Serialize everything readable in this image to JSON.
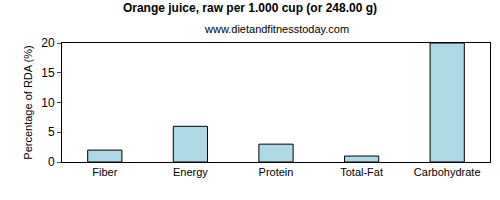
{
  "chart_data": {
    "type": "bar",
    "title": "Orange juice, raw per 1.000 cup (or 248.00 g)",
    "subtitle": "www.dietandfitnesstoday.com",
    "y_label": "Percentage of RDA (%)",
    "categories": [
      "Fiber",
      "Energy",
      "Protein",
      "Total-Fat",
      "Carbohydrate"
    ],
    "values": [
      2,
      6,
      3,
      1,
      20
    ],
    "color": "#add8e6",
    "ylim": [
      0,
      20
    ],
    "yticks": [
      0,
      5,
      10,
      15,
      20
    ],
    "grid": false
  }
}
